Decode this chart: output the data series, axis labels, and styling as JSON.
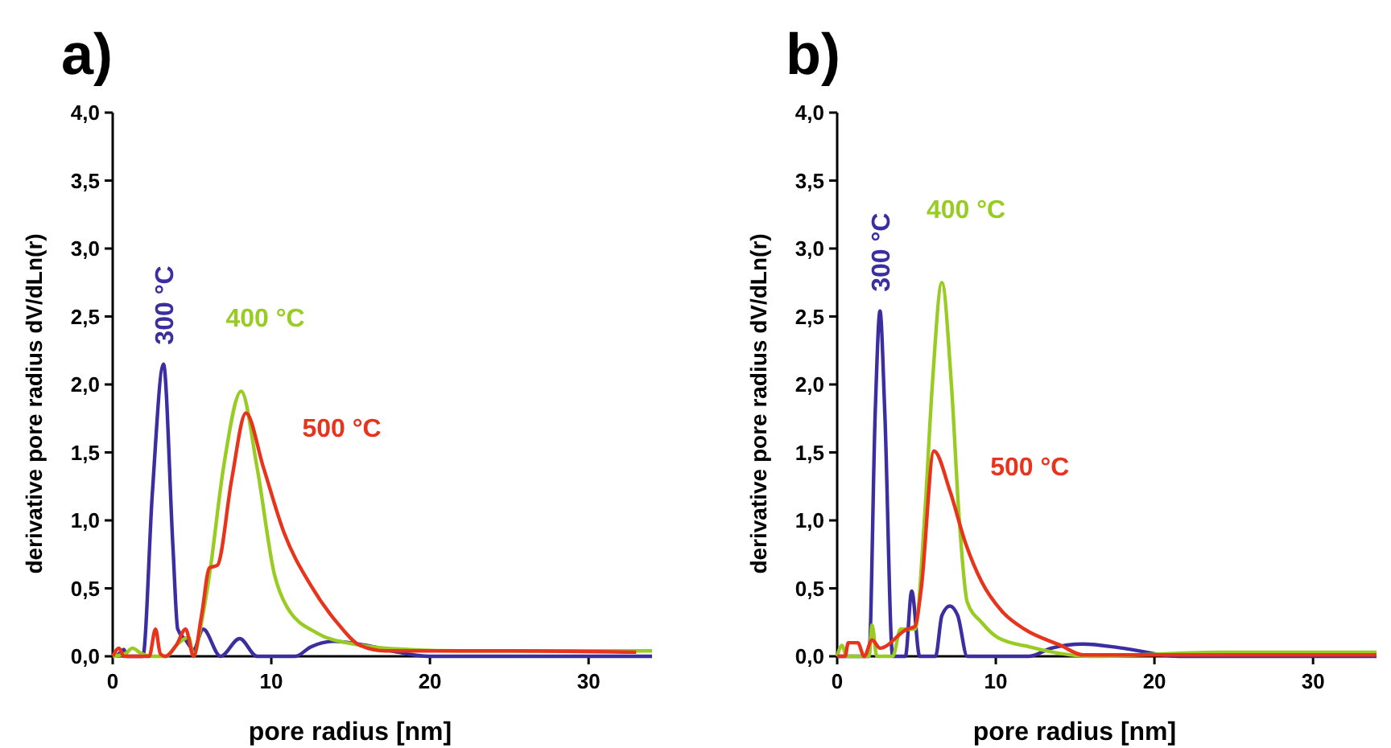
{
  "chart_data": [
    {
      "type": "line",
      "title": "a)",
      "xlabel": "pore radius [nm]",
      "ylabel": "derivative pore radius dV/dLn(r)",
      "xlim": [
        0,
        34
      ],
      "ylim": [
        0,
        4
      ],
      "xticks": [
        0,
        10,
        20,
        30
      ],
      "yticks": [
        {
          "value": 0,
          "label": "0,0"
        },
        {
          "value": 0.5,
          "label": "0,5"
        },
        {
          "value": 1,
          "label": "1,0"
        },
        {
          "value": 1.5,
          "label": "1,5"
        },
        {
          "value": 2,
          "label": "2,0"
        },
        {
          "value": 2.5,
          "label": "2,5"
        },
        {
          "value": 3,
          "label": "3,0"
        },
        {
          "value": 3.5,
          "label": "3,5"
        },
        {
          "value": 4,
          "label": "4,0"
        }
      ],
      "series": [
        {
          "name": "300 °C",
          "color": "#3a2ea0",
          "x": [
            0.2,
            0.5,
            0.7,
            0.9,
            1.9,
            2.5,
            3.2,
            3.8,
            4.1,
            4.6,
            5.1,
            5.7,
            6.8,
            8.0,
            9.1,
            11.5,
            12.5,
            13.9,
            16,
            18,
            19.9,
            34
          ],
          "values": [
            0,
            0.03,
            0.05,
            0,
            0,
            1.2,
            2.15,
            0.8,
            0.2,
            0.12,
            0.05,
            0.2,
            0,
            0.13,
            0,
            0,
            0.07,
            0.11,
            0.08,
            0.03,
            0,
            0
          ]
        },
        {
          "name": "400 °C",
          "color": "#99cc22",
          "x": [
            0,
            0.8,
            1.25,
            1.8,
            2.5,
            3.4,
            4.0,
            4.8,
            5.1,
            5.6,
            6.1,
            7.0,
            8.1,
            9.1,
            10.2,
            11,
            12.9,
            15.2,
            18.6,
            22,
            34
          ],
          "values": [
            0,
            0.02,
            0.06,
            0.02,
            0,
            0,
            0.08,
            0.14,
            0,
            0.25,
            0.6,
            1.4,
            1.95,
            1.39,
            0.6,
            0.36,
            0.17,
            0.09,
            0.05,
            0.04,
            0.04
          ]
        },
        {
          "name": "500 °C",
          "color": "#e8341c",
          "x": [
            0,
            0.4,
            0.7,
            2.3,
            2.7,
            3.0,
            3.3,
            4.0,
            4.6,
            5.1,
            5.6,
            6.1,
            6.6,
            7.5,
            8.4,
            9.5,
            10.8,
            12.5,
            14.2,
            15.6,
            17.2,
            25,
            33
          ],
          "values": [
            0,
            0.06,
            0,
            0,
            0.2,
            0.02,
            0,
            0.08,
            0.2,
            0,
            0.3,
            0.65,
            0.67,
            1.3,
            1.79,
            1.39,
            0.91,
            0.52,
            0.24,
            0.08,
            0.04,
            0.04,
            0.03
          ]
        }
      ]
    },
    {
      "type": "line",
      "title": "b)",
      "xlabel": "pore radius [nm]",
      "ylabel": "derivative pore radius dV/dLn(r)",
      "xlim": [
        0,
        34
      ],
      "ylim": [
        0,
        4
      ],
      "xticks": [
        0,
        10,
        20,
        30
      ],
      "yticks": [
        {
          "value": 0,
          "label": "0,0"
        },
        {
          "value": 0.5,
          "label": "0,5"
        },
        {
          "value": 1,
          "label": "1,0"
        },
        {
          "value": 1.5,
          "label": "1,5"
        },
        {
          "value": 2,
          "label": "2,0"
        },
        {
          "value": 2.5,
          "label": "2,5"
        },
        {
          "value": 3,
          "label": "3,0"
        },
        {
          "value": 3.5,
          "label": "3,5"
        },
        {
          "value": 4,
          "label": "4,0"
        }
      ],
      "series": [
        {
          "name": "300 °C",
          "color": "#3a2ea0",
          "x": [
            0,
            2.0,
            2.4,
            2.7,
            3.0,
            3.5,
            4.3,
            4.7,
            5.2,
            6.2,
            6.6,
            7.1,
            7.6,
            8.2,
            12.1,
            13.5,
            15.5,
            18,
            21.5,
            34
          ],
          "values": [
            0,
            0,
            1.8,
            2.54,
            1.8,
            0,
            0,
            0.48,
            0,
            0,
            0.3,
            0.37,
            0.3,
            0,
            0,
            0.06,
            0.09,
            0.06,
            0,
            0
          ]
        },
        {
          "name": "400 °C",
          "color": "#99cc22",
          "x": [
            0,
            0.3,
            0.6,
            2.0,
            2.2,
            2.5,
            3.5,
            4.0,
            4.9,
            5.5,
            6.0,
            6.6,
            7.2,
            7.7,
            8.2,
            9.1,
            10.1,
            12.1,
            14.1,
            16,
            24,
            34
          ],
          "values": [
            0,
            0.08,
            0,
            0,
            0.23,
            0,
            0,
            0.2,
            0.2,
            1.0,
            2.0,
            2.75,
            2.0,
            1.0,
            0.4,
            0.25,
            0.14,
            0.07,
            0.02,
            0,
            0.03,
            0.03
          ]
        },
        {
          "name": "500 °C",
          "color": "#e8341c",
          "x": [
            0,
            0.5,
            0.7,
            1.3,
            1.7,
            2.2,
            2.7,
            4.4,
            4.9,
            5.3,
            6.1,
            7.1,
            8.1,
            9.1,
            10.4,
            11.8,
            14.1,
            15.5,
            34
          ],
          "values": [
            0,
            0,
            0.1,
            0.1,
            0,
            0.12,
            0.06,
            0.2,
            0.22,
            0.5,
            1.51,
            1.22,
            0.83,
            0.55,
            0.33,
            0.2,
            0.08,
            0.01,
            0.01
          ]
        }
      ]
    }
  ]
}
